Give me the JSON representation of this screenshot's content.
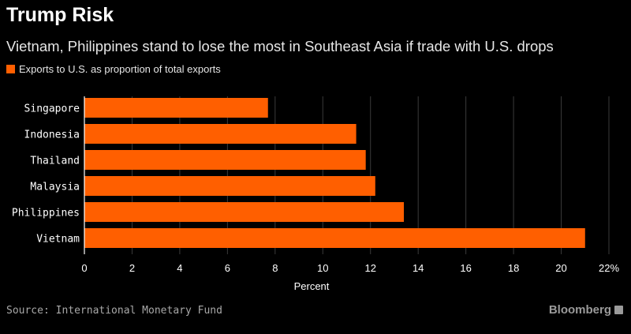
{
  "header": {
    "title": "Trump Risk",
    "subtitle": "Vietnam, Philippines stand to lose the most in Southeast Asia if trade with U.S. drops"
  },
  "footer": {
    "source": "Source: International Monetary Fund",
    "brand": "Bloomberg"
  },
  "colors": {
    "background": "#000000",
    "bar": "#ff5f00",
    "grid": "#3a3a3a"
  },
  "chart_data": {
    "type": "bar",
    "orientation": "horizontal",
    "categories": [
      "Singapore",
      "Indonesia",
      "Thailand",
      "Malaysia",
      "Philippines",
      "Vietnam"
    ],
    "series": [
      {
        "name": "Exports to U.S. as proportion of total exports",
        "values": [
          7.7,
          11.4,
          11.8,
          12.2,
          13.4,
          21.0
        ]
      }
    ],
    "xlabel": "Percent",
    "xlim": [
      0,
      22
    ],
    "xticks": [
      0,
      2,
      4,
      6,
      8,
      10,
      12,
      14,
      16,
      18,
      20,
      22
    ],
    "xtick_labels": [
      "0",
      "2",
      "4",
      "6",
      "8",
      "10",
      "12",
      "14",
      "16",
      "18",
      "20",
      "22%"
    ],
    "grid": true,
    "legend_position": "top-left"
  }
}
